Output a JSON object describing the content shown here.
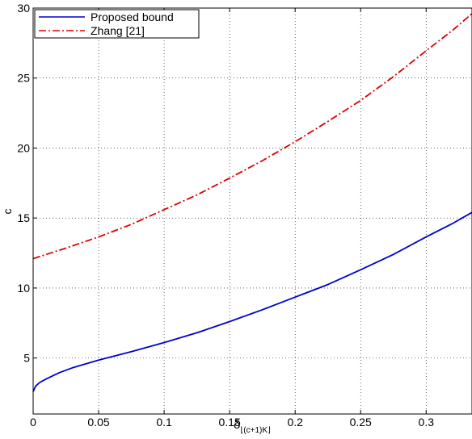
{
  "chart_data": {
    "type": "line",
    "xlabel": "δ⌊(c+1)K⌋",
    "ylabel": "c",
    "xlim": [
      0,
      0.335
    ],
    "ylim": [
      1,
      30
    ],
    "grid": true,
    "grid_style": "dotted",
    "legend_placement": "top-left",
    "xticks": [
      0,
      0.05,
      0.1,
      0.15,
      0.2,
      0.25,
      0.3
    ],
    "xtick_labels": [
      "0",
      "0.05",
      "0.1",
      "0.15",
      "0.2",
      "0.25",
      "0.3"
    ],
    "yticks": [
      5,
      10,
      15,
      20,
      25,
      30
    ],
    "ytick_labels": [
      "5",
      "10",
      "15",
      "20",
      "25",
      "30"
    ],
    "series": [
      {
        "name": "Proposed bound",
        "color": "#0000cc",
        "style": "solid",
        "x": [
          0,
          0.002,
          0.005,
          0.01,
          0.02,
          0.03,
          0.05,
          0.075,
          0.1,
          0.125,
          0.15,
          0.175,
          0.2,
          0.225,
          0.25,
          0.275,
          0.3,
          0.32,
          0.335
        ],
        "y": [
          2.6,
          3.0,
          3.25,
          3.5,
          3.95,
          4.3,
          4.85,
          5.45,
          6.1,
          6.8,
          7.6,
          8.45,
          9.35,
          10.25,
          11.3,
          12.4,
          13.65,
          14.6,
          15.4
        ]
      },
      {
        "name": "Zhang [21]",
        "color": "#dd0000",
        "style": "dashdot",
        "x": [
          0,
          0.025,
          0.05,
          0.075,
          0.1,
          0.125,
          0.15,
          0.175,
          0.2,
          0.225,
          0.25,
          0.275,
          0.3,
          0.32,
          0.335
        ],
        "y": [
          12.1,
          12.85,
          13.65,
          14.55,
          15.6,
          16.65,
          17.85,
          19.1,
          20.45,
          21.9,
          23.4,
          25.1,
          26.95,
          28.4,
          29.6
        ]
      }
    ]
  }
}
